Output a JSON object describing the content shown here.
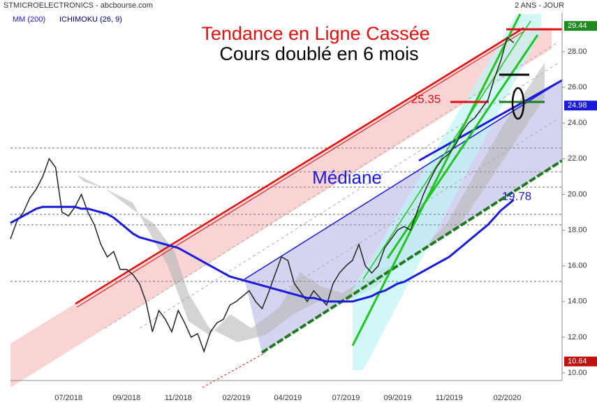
{
  "header": {
    "title": "STMICROELECTRONICS - abcbourse.com",
    "period": "2 ANS - JOUR"
  },
  "chart_data": {
    "type": "line",
    "categories": [
      "",
      null,
      null,
      null,
      null,
      null,
      null,
      null,
      null,
      "07/2018",
      null,
      null,
      null,
      null,
      null,
      null,
      null,
      null,
      "09/2018",
      null,
      null,
      null,
      null,
      null,
      null,
      null,
      "11/2018",
      null,
      null,
      null,
      null,
      null,
      null,
      null,
      null,
      "02/2019",
      null,
      null,
      null,
      null,
      null,
      null,
      null,
      "04/2019",
      null,
      null,
      null,
      null,
      null,
      null,
      null,
      null,
      "07/2019",
      null,
      null,
      null,
      null,
      null,
      null,
      null,
      "09/2019",
      null,
      null,
      null,
      null,
      null,
      null,
      null,
      "11/2019",
      null,
      null,
      null,
      null,
      null,
      null,
      null,
      null,
      "02/2020",
      null
    ],
    "series": [
      {
        "name": "STMICROELECTRONICS",
        "color": "#222222",
        "values": [
          17.5,
          18.5,
          19,
          19.8,
          20.3,
          21,
          22,
          21.5,
          19,
          18.8,
          19.3,
          20,
          19,
          18.3,
          17.2,
          16.5,
          16.8,
          15.8,
          15.8,
          15.5,
          15,
          14,
          12.3,
          13.5,
          13,
          12.3,
          13.5,
          12.8,
          12,
          12.2,
          11.2,
          12.3,
          12.8,
          13,
          13.8,
          14,
          14.3,
          14.6,
          14,
          13.6,
          14.5,
          15.5,
          16.5,
          16.3,
          15,
          14.5,
          14,
          14.6,
          14.2,
          13.8,
          15,
          15.6,
          16,
          16.3,
          17.2,
          16,
          15.6,
          16,
          17,
          17.5,
          18,
          18.2,
          18,
          19,
          20,
          20.8,
          21.5,
          22,
          22.3,
          22.8,
          23.5,
          24,
          24.3,
          24.8,
          25.3,
          26.5,
          27.5,
          28.8,
          28.5
        ]
      },
      {
        "name": "MM (200)",
        "color": "#1a1adb",
        "values": [
          18.4,
          18.6,
          18.8,
          19.0,
          19.2,
          19.3,
          19.3,
          19.3,
          19.3,
          19.3,
          19.3,
          19.2,
          19.2,
          19.1,
          19.0,
          18.9,
          18.7,
          18.4,
          18.1,
          17.8,
          17.6,
          17.5,
          17.4,
          17.3,
          17.2,
          17.1,
          17.0,
          16.8,
          16.6,
          16.4,
          16.2,
          16.0,
          15.8,
          15.6,
          15.4,
          15.3,
          15.2,
          15.1,
          15.0,
          14.9,
          14.8,
          14.7,
          14.6,
          14.5,
          14.4,
          14.3,
          14.2,
          14.2,
          14.1,
          14.0,
          14.0,
          14.0,
          14.0,
          14.0,
          14.1,
          14.2,
          14.3,
          14.5,
          14.6,
          14.8,
          15.0,
          15.1,
          15.3,
          15.5,
          15.7,
          15.9,
          16.1,
          16.3,
          16.5,
          16.8,
          17.1,
          17.4,
          17.7,
          18.0,
          18.3,
          18.7,
          19.1,
          19.4,
          19.7
        ]
      }
    ],
    "legend_extra": {
      "name": "ICHIMOKU (26, 9)",
      "color": "#000080"
    },
    "ylim": [
      9.57,
      30.19
    ],
    "yticks": [
      {
        "value": 10,
        "label": "10.00"
      },
      {
        "value": 12,
        "label": "12.00"
      },
      {
        "value": 14,
        "label": "14.00"
      },
      {
        "value": 16,
        "label": "16.00"
      },
      {
        "value": 18,
        "label": "18.00"
      },
      {
        "value": 20,
        "label": "20.00"
      },
      {
        "value": 22,
        "label": "22.00"
      },
      {
        "value": 24,
        "label": "24.00"
      },
      {
        "value": 26,
        "label": "26.00"
      },
      {
        "value": 28,
        "label": "28.00"
      }
    ],
    "price_tags": [
      {
        "value": 29.44,
        "label": "29.44",
        "color": "#1e8c1e"
      },
      {
        "value": 24.98,
        "label": "24.98",
        "color": "#1a1adb"
      },
      {
        "value": 10.64,
        "label": "10.64",
        "color": "#c01010"
      }
    ],
    "annotations": {
      "title": "Tendance en Ligne Cassée",
      "subtitle": "Cours doublé en 6 mois",
      "median": "Médiane",
      "level": "25.35",
      "mm_value": "19.78"
    }
  }
}
